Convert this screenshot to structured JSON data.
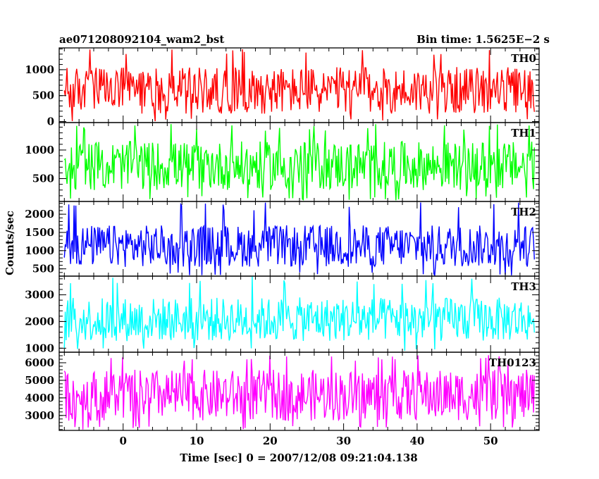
{
  "header": {
    "title": "ae071208092104_wam2_bst",
    "bin_time": "Bin time: 1.5625E−2 s"
  },
  "chart_data": {
    "type": "line",
    "title": "ae071208092104_wam2_bst",
    "xlabel": "Time [sec] 0 = 2007/12/08 09:21:04.138",
    "ylabel": "Counts/sec",
    "xlim": [
      -8.7,
      56.6
    ],
    "x_data_range": [
      -8.0,
      56.0
    ],
    "x_ticks": [
      0,
      10,
      20,
      30,
      40,
      50
    ],
    "x_tick_labels": [
      "0",
      "10",
      "20",
      "30",
      "40",
      "50"
    ],
    "panels": [
      {
        "name": "TH0",
        "color": "#ff0000",
        "ylim": [
          -20,
          1420
        ],
        "y_ticks": [
          0,
          500,
          1000
        ],
        "y_tick_labels": [
          "0",
          "500",
          "1000"
        ],
        "typical_range": [
          150,
          1050
        ],
        "observed_min": 0,
        "observed_max": 1400
      },
      {
        "name": "TH1",
        "color": "#00ff00",
        "ylim": [
          100,
          1480
        ],
        "y_ticks": [
          500,
          1000
        ],
        "y_tick_labels": [
          "500",
          "1000"
        ],
        "typical_range": [
          300,
          1150
        ],
        "observed_min": 120,
        "observed_max": 1460
      },
      {
        "name": "TH2",
        "color": "#0000ff",
        "ylim": [
          300,
          2350
        ],
        "y_ticks": [
          500,
          1000,
          1500,
          2000
        ],
        "y_tick_labels": [
          "500",
          "1000",
          "1500",
          "2000"
        ],
        "typical_range": [
          550,
          1700
        ],
        "observed_min": 310,
        "observed_max": 2350
      },
      {
        "name": "TH3",
        "color": "#00ffff",
        "ylim": [
          850,
          3700
        ],
        "y_ticks": [
          1000,
          2000,
          3000
        ],
        "y_tick_labels": [
          "1000",
          "2000",
          "3000"
        ],
        "typical_range": [
          1250,
          2900
        ],
        "observed_min": 900,
        "observed_max": 3700
      },
      {
        "name": "TH0123",
        "color": "#ff00ff",
        "ylim": [
          2150,
          6600
        ],
        "y_ticks": [
          3000,
          4000,
          5000,
          6000
        ],
        "y_tick_labels": [
          "3000",
          "4000",
          "5000",
          "6000"
        ],
        "typical_range": [
          2700,
          5600
        ],
        "observed_min": 2200,
        "observed_max": 6450
      }
    ]
  }
}
